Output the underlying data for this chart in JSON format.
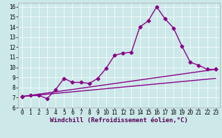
{
  "xlabel": "Windchill (Refroidissement éolien,°C)",
  "bg_color": "#cce8e8",
  "line_color": "#880088",
  "xlim": [
    -0.5,
    23.5
  ],
  "ylim": [
    6,
    16.4
  ],
  "xticks": [
    0,
    1,
    2,
    3,
    4,
    5,
    6,
    7,
    8,
    9,
    10,
    11,
    12,
    13,
    14,
    15,
    16,
    17,
    18,
    19,
    20,
    21,
    22,
    23
  ],
  "yticks": [
    6,
    7,
    8,
    9,
    10,
    11,
    12,
    13,
    14,
    15,
    16
  ],
  "line1_x": [
    0,
    1,
    2,
    3,
    4,
    5,
    6,
    7,
    8,
    9,
    10,
    11,
    12,
    13,
    14,
    15,
    16,
    17,
    18,
    19,
    20,
    21,
    22,
    23
  ],
  "line1_y": [
    7.1,
    7.2,
    7.2,
    6.9,
    7.8,
    8.9,
    8.5,
    8.5,
    8.4,
    8.9,
    9.9,
    11.2,
    11.4,
    11.5,
    14.0,
    14.6,
    16.0,
    14.8,
    13.9,
    12.1,
    10.5,
    10.2,
    9.8,
    9.8
  ],
  "line2_x": [
    0,
    23
  ],
  "line2_y": [
    7.1,
    8.9
  ],
  "line3_x": [
    0,
    23
  ],
  "line3_y": [
    7.1,
    9.8
  ],
  "tick_fontsize": 5.5,
  "xlabel_fontsize": 6.5
}
